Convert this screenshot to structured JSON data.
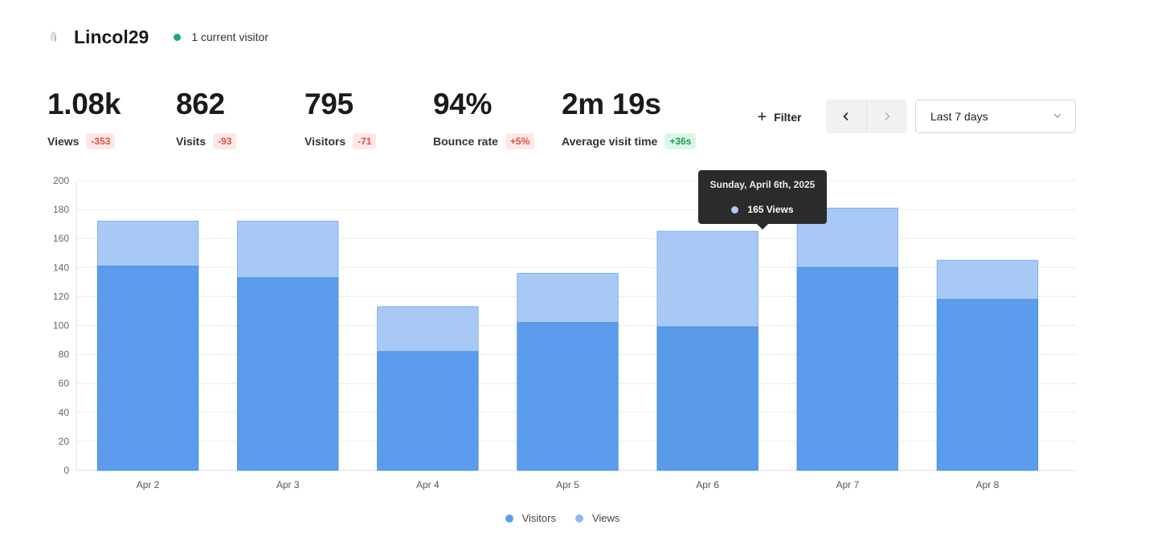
{
  "site": {
    "name": "Lincol29",
    "live_text": "1 current visitor",
    "live_color": "#1ea672"
  },
  "metrics": [
    {
      "key": "views",
      "value": "1.08k",
      "label": "Views",
      "change": "-353",
      "trend": "down"
    },
    {
      "key": "visits",
      "value": "862",
      "label": "Visits",
      "change": "-93",
      "trend": "down"
    },
    {
      "key": "visitors",
      "value": "795",
      "label": "Visitors",
      "change": "-71",
      "trend": "down"
    },
    {
      "key": "bounce-rate",
      "value": "94%",
      "label": "Bounce rate",
      "change": "+5%",
      "trend": "down"
    },
    {
      "key": "average-visit-time",
      "value": "2m 19s",
      "label": "Average visit time",
      "change": "+36s",
      "trend": "up"
    }
  ],
  "toolbar": {
    "filter_label": "Filter",
    "prev_icon": "chevron-left-icon",
    "next_icon": "chevron-right-icon",
    "range_value": "Last 7 days"
  },
  "tooltip": {
    "title": "Sunday, April 6th, 2025",
    "value_text": "165 Views"
  },
  "chart_data": {
    "type": "bar",
    "stacked_overlay": true,
    "categories": [
      "Apr 2",
      "Apr 3",
      "Apr 4",
      "Apr 5",
      "Apr 6",
      "Apr 7",
      "Apr 8"
    ],
    "series": [
      {
        "name": "Visitors",
        "values": [
          141,
          133,
          82,
          102,
          99,
          140,
          118
        ],
        "color": "#5b9dec"
      },
      {
        "name": "Views",
        "values": [
          172,
          172,
          113,
          136,
          165,
          181,
          145
        ],
        "color": "#a8c9f5"
      }
    ],
    "ylim": [
      0,
      200
    ],
    "yticks": [
      0,
      20,
      40,
      60,
      80,
      100,
      120,
      140,
      160,
      180,
      200
    ],
    "grid": true,
    "legend": "bottom-center",
    "highlighted_category": "Apr 6"
  }
}
